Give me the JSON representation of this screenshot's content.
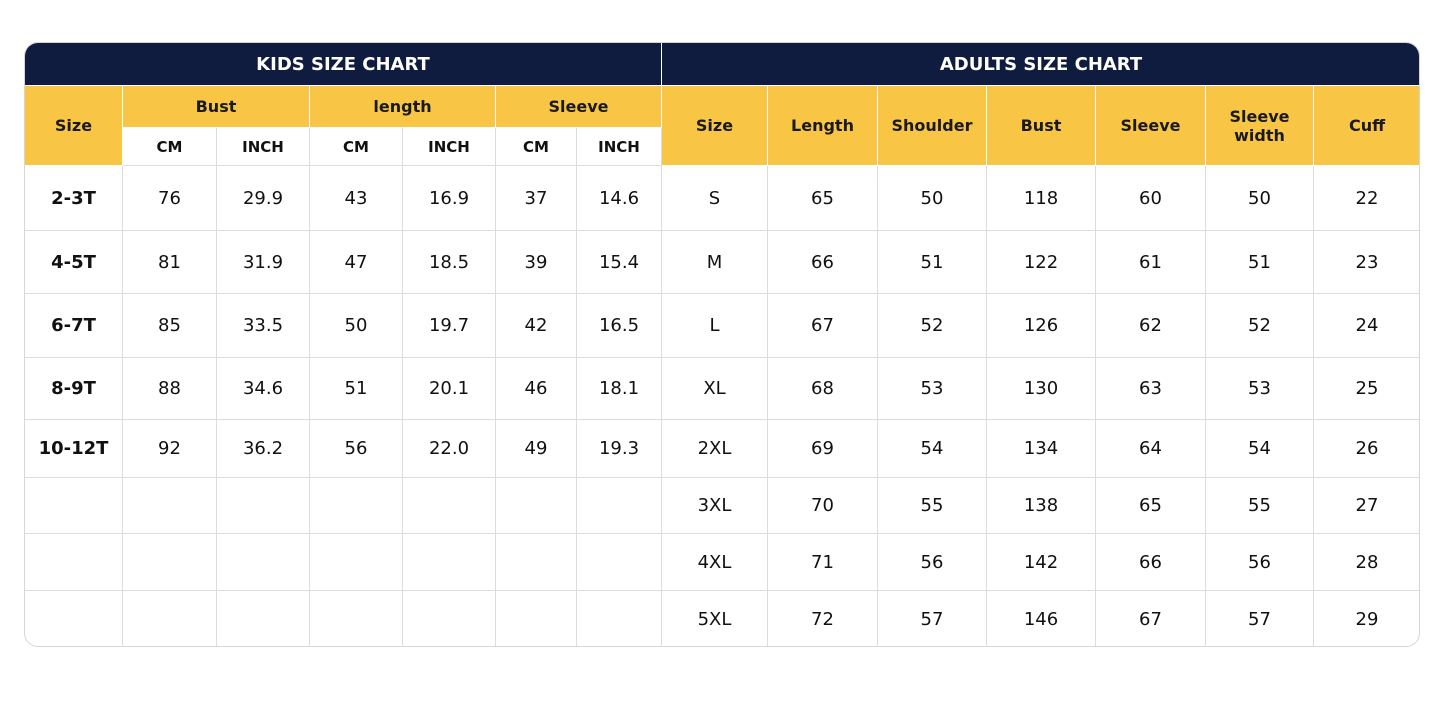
{
  "kids": {
    "title": "KIDS SIZE CHART",
    "size_header": "Size",
    "groups": [
      {
        "label": "Bust",
        "sub": [
          "CM",
          "INCH"
        ]
      },
      {
        "label": "length",
        "sub": [
          "CM",
          "INCH"
        ]
      },
      {
        "label": "Sleeve",
        "sub": [
          "CM",
          "INCH"
        ]
      }
    ],
    "rows": [
      [
        "2-3T",
        "76",
        "29.9",
        "43",
        "16.9",
        "37",
        "14.6"
      ],
      [
        "4-5T",
        "81",
        "31.9",
        "47",
        "18.5",
        "39",
        "15.4"
      ],
      [
        "6-7T",
        "85",
        "33.5",
        "50",
        "19.7",
        "42",
        "16.5"
      ],
      [
        "8-9T",
        "88",
        "34.6",
        "51",
        "20.1",
        "46",
        "18.1"
      ],
      [
        "10-12T",
        "92",
        "36.2",
        "56",
        "22.0",
        "49",
        "19.3"
      ]
    ]
  },
  "adults": {
    "title": "ADULTS SIZE CHART",
    "headers": [
      "Size",
      "Length",
      "Shoulder",
      "Bust",
      "Sleeve",
      "Sleeve width",
      "Cuff"
    ],
    "rows": [
      [
        "S",
        "65",
        "50",
        "118",
        "60",
        "50",
        "22"
      ],
      [
        "M",
        "66",
        "51",
        "122",
        "61",
        "51",
        "23"
      ],
      [
        "L",
        "67",
        "52",
        "126",
        "62",
        "52",
        "24"
      ],
      [
        "XL",
        "68",
        "53",
        "130",
        "63",
        "53",
        "25"
      ],
      [
        "2XL",
        "69",
        "54",
        "134",
        "64",
        "54",
        "26"
      ],
      [
        "3XL",
        "70",
        "55",
        "138",
        "65",
        "55",
        "27"
      ],
      [
        "4XL",
        "71",
        "56",
        "142",
        "66",
        "56",
        "28"
      ],
      [
        "5XL",
        "72",
        "57",
        "146",
        "67",
        "57",
        "29"
      ]
    ]
  }
}
